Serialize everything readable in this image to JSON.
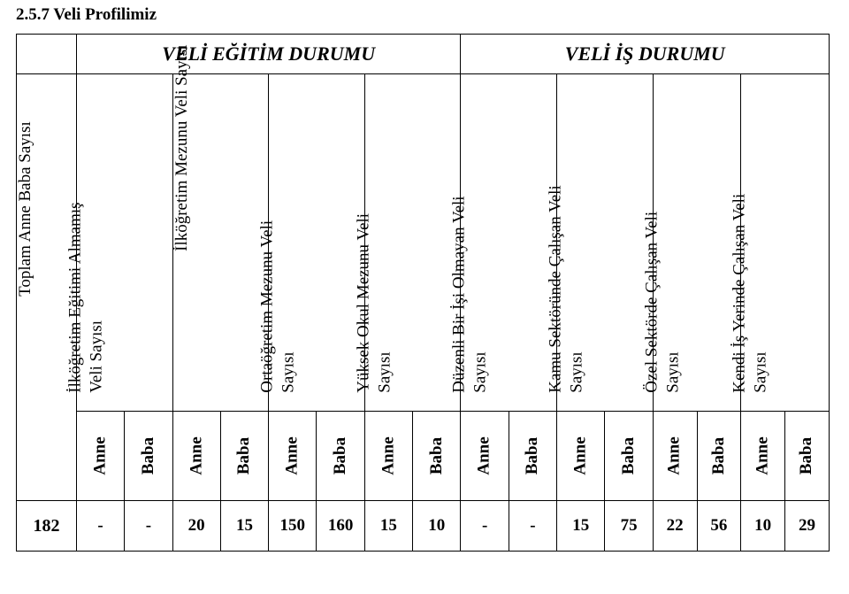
{
  "title": "2.5.7 Veli Profilimiz",
  "top_headers": {
    "blank": "",
    "egitim": "VELİ EĞİTİM DURUMU",
    "is": "VELİ İŞ DURUMU"
  },
  "group_headers": [
    "Toplam Anne Baba Sayısı",
    "İlköğretim Eğitimi Almamış\nVeli Sayısı",
    "İlköğretim Mezunu Veli Sayısı",
    "Ortaöğretim Mezunu Veli\nSayısı",
    "Yüksek Okul Mezunu Veli\nSayısı",
    "Düzenli Bir İşi Olmayan Veli\nSayısı",
    "Kamu Sektöründe Çalışan Veli\nSayısı",
    "Özel Sektörde Çalışan Veli\nSayısı",
    "Kendi İş Yerinde Çalışan Veli\nSayısı"
  ],
  "ab": {
    "anne": "Anne",
    "baba": "Baba"
  },
  "row_total": "182",
  "values": [
    "-",
    "-",
    "20",
    "15",
    "150",
    "160",
    "15",
    "10",
    "-",
    "-",
    "15",
    "75",
    "22",
    "56",
    "10",
    "29"
  ],
  "style": {
    "font_family": "Times New Roman",
    "title_size_pt": 14,
    "rot_size_pt": 14,
    "data_size_pt": 14,
    "border_color": "#000000",
    "background": "#ffffff",
    "text_color": "#000000",
    "top_header_italic": true,
    "top_header_bold": true
  }
}
